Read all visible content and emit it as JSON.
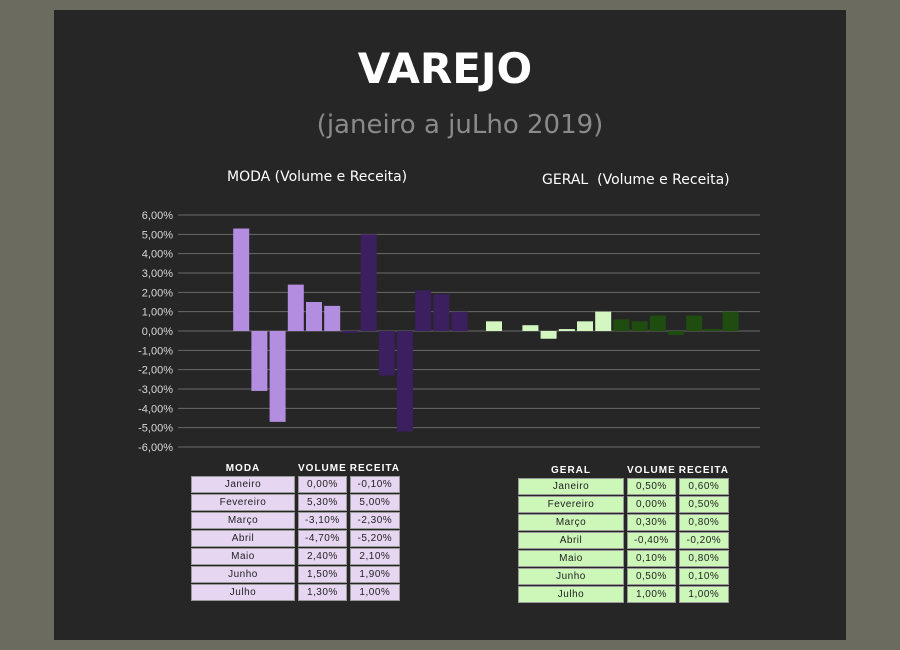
{
  "title": "VAREJO",
  "subtitle": "(janeiro a juLho 2019)",
  "chart_data": {
    "type": "bar",
    "y_ticks": [
      "6,00%",
      "5,00%",
      "4,00%",
      "3,00%",
      "2,00%",
      "1,00%",
      "0,00%",
      "-1,00%",
      "-2,00%",
      "-3,00%",
      "-4,00%",
      "-5,00%",
      "-6,00%"
    ],
    "ylim": [
      -6,
      6
    ],
    "grid": true,
    "months": [
      "Janeiro",
      "Fevereiro",
      "Março",
      "Abril",
      "Maio",
      "Junho",
      "Julho"
    ],
    "groups": [
      {
        "title": "MODA (Volume e Receita)",
        "table_header": [
          "MODA",
          "VOLUME",
          "RECEITA"
        ],
        "series": [
          {
            "name": "VOLUME",
            "color": "#b38ee0",
            "values": [
              0.0,
              5.3,
              -3.1,
              -4.7,
              2.4,
              1.5,
              1.3
            ],
            "labels": [
              "0,00%",
              "5,30%",
              "-3,10%",
              "-4,70%",
              "2,40%",
              "1,50%",
              "1,30%"
            ]
          },
          {
            "name": "RECEITA",
            "color": "#3b1f5e",
            "values": [
              -0.1,
              5.0,
              -2.3,
              -5.2,
              2.1,
              1.9,
              1.0
            ],
            "labels": [
              "-0,10%",
              "5,00%",
              "-2,30%",
              "-5,20%",
              "2,10%",
              "1,90%",
              "1,00%"
            ]
          }
        ]
      },
      {
        "title": "GERAL  (Volume e Receita)",
        "table_header": [
          "GERAL",
          "VOLUME",
          "RECEITA"
        ],
        "series": [
          {
            "name": "VOLUME",
            "color": "#d4f7c2",
            "values": [
              0.5,
              0.0,
              0.3,
              -0.4,
              0.1,
              0.5,
              1.0
            ],
            "labels": [
              "0,50%",
              "0,00%",
              "0,30%",
              "-0,40%",
              "0,10%",
              "0,50%",
              "1,00%"
            ]
          },
          {
            "name": "RECEITA",
            "color": "#1f4d10",
            "values": [
              0.6,
              0.5,
              0.8,
              -0.2,
              0.8,
              0.1,
              1.0
            ],
            "labels": [
              "0,60%",
              "0,50%",
              "0,80%",
              "-0,20%",
              "0,80%",
              "0,10%",
              "1,00%"
            ]
          }
        ]
      }
    ]
  }
}
